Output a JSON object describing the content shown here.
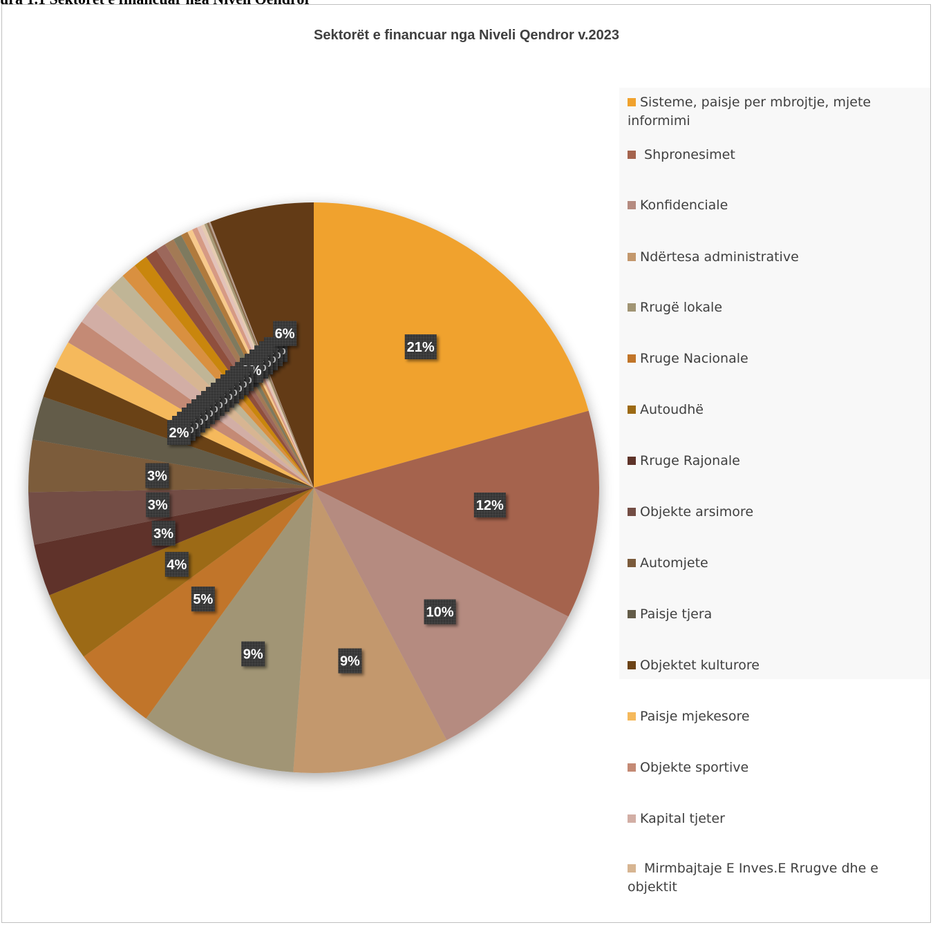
{
  "page": {
    "top_caption": "ura 1.1 Sektorët e financuar nga Niveli Qendror"
  },
  "chart_data": {
    "type": "pie",
    "title": "Sektorët e financuar nga Niveli Qendror v.2023",
    "slices": [
      {
        "label": "Sisteme, paisje per mbrojtje, mjete informimi",
        "value": 21,
        "data_label": "21%",
        "color": "#f0a22e"
      },
      {
        "label": " Shpronesimet",
        "value": 12,
        "data_label": "12%",
        "color": "#a5644e"
      },
      {
        "label": "Konfidenciale",
        "value": 10,
        "data_label": "10%",
        "color": "#b58b80"
      },
      {
        "label": "Ndërtesa administrative",
        "value": 9,
        "data_label": "9%",
        "color": "#c3986d"
      },
      {
        "label": "Rrugë lokale",
        "value": 9,
        "data_label": "9%",
        "color": "#a19574"
      },
      {
        "label": "Rruge Nacionale",
        "value": 5,
        "data_label": "5%",
        "color": "#c17529"
      },
      {
        "label": "Autoudhë",
        "value": 4,
        "data_label": "4%",
        "color": "#9c6a14"
      },
      {
        "label": "Rruge Rajonale",
        "value": 3,
        "data_label": "3%",
        "color": "#5e3329"
      },
      {
        "label": "Objekte arsimore",
        "value": 3,
        "data_label": "3%",
        "color": "#734d44"
      },
      {
        "label": "Automjete",
        "value": 3,
        "data_label": "3%",
        "color": "#7b5b3b"
      },
      {
        "label": "Paisje tjera",
        "value": 2.5,
        "data_label": "2%",
        "color": "#635c48"
      },
      {
        "label": "Objektet kulturore",
        "value": 1.8,
        "data_label": "2%",
        "color": "#6b4216"
      },
      {
        "label": "Paisje mjekesore",
        "value": 1.6,
        "data_label": "2%",
        "color": "#f5b95c"
      },
      {
        "label": "Objekte sportive",
        "value": 1.4,
        "data_label": "1%",
        "color": "#c48a75"
      },
      {
        "label": "Kapital tjeter",
        "value": 1.3,
        "data_label": "1%",
        "color": "#d2aea5"
      },
      {
        "label": " Mirmbajtaje E Inves.E Rrugve dhe e objektit",
        "value": 1.2,
        "data_label": "1%",
        "color": "#d7b592"
      },
      {
        "label": "",
        "value": 1.0,
        "data_label": "1%",
        "color": "#c0b596"
      },
      {
        "label": "",
        "value": 0.9,
        "data_label": "1%",
        "color": "#d9903f"
      },
      {
        "label": "",
        "value": 0.8,
        "data_label": "1%",
        "color": "#c98611"
      },
      {
        "label": "",
        "value": 0.7,
        "data_label": "1%",
        "color": "#8f4f3c"
      },
      {
        "label": "",
        "value": 0.6,
        "data_label": "1%",
        "color": "#9c675c"
      },
      {
        "label": "",
        "value": 0.55,
        "data_label": "1%",
        "color": "#a37a55"
      },
      {
        "label": "",
        "value": 0.5,
        "data_label": "0%",
        "color": "#7e7a5e"
      },
      {
        "label": "",
        "value": 0.4,
        "data_label": "0%",
        "color": "#b07a3e"
      },
      {
        "label": "",
        "value": 0.3,
        "data_label": "0%",
        "color": "#f7c98c"
      },
      {
        "label": "",
        "value": 0.3,
        "data_label": "0%",
        "color": "#d69a84"
      },
      {
        "label": "",
        "value": 0.25,
        "data_label": "0%",
        "color": "#e3c2b9"
      },
      {
        "label": "",
        "value": 0.2,
        "data_label": "0%",
        "color": "#e6cbb0"
      },
      {
        "label": "",
        "value": 0.15,
        "data_label": "0%",
        "color": "#a89b78"
      },
      {
        "label": "",
        "value": 0.12,
        "data_label": "0%",
        "color": "#8a6a4a"
      },
      {
        "label": "",
        "value": 0.1,
        "data_label": "0%",
        "color": "#b89f90"
      },
      {
        "label": "",
        "value": 6,
        "data_label": "6%",
        "color": "#643b17"
      }
    ],
    "legend_position": "right"
  }
}
